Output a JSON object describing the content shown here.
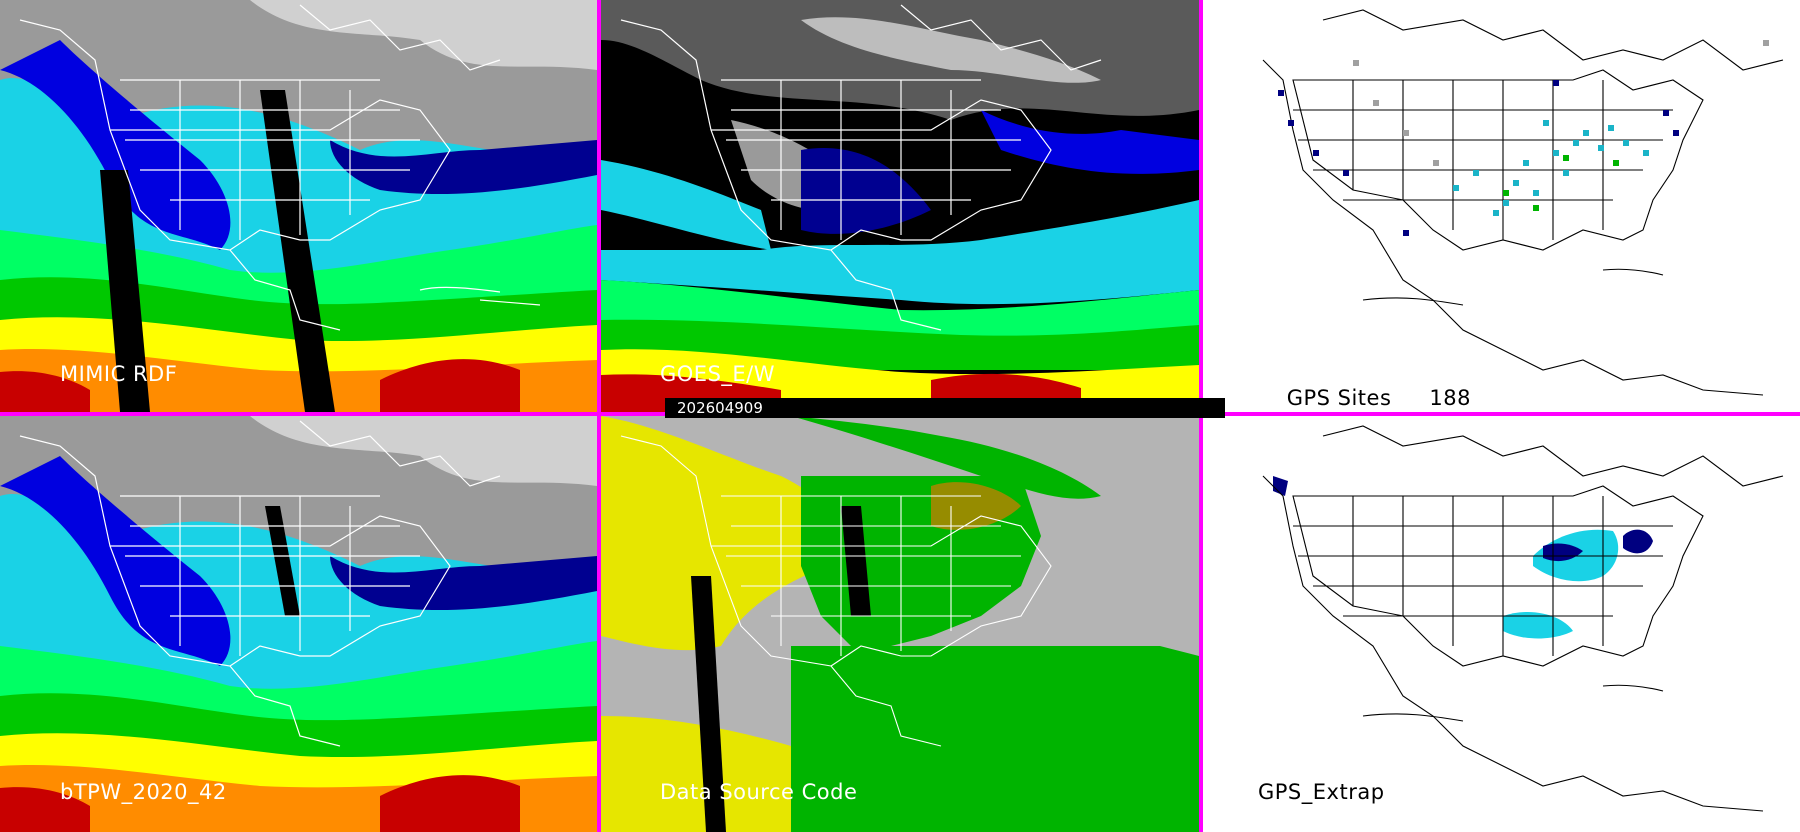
{
  "panels": [
    {
      "label": "MIMIC RDF"
    },
    {
      "label": "GOES_E/W"
    },
    {
      "label": "GPS Sites",
      "count": "188"
    },
    {
      "label": "bTPW_2020_42"
    },
    {
      "label": "Data Source Code"
    },
    {
      "label": "GPS_Extrap"
    }
  ],
  "timestamp": "202604909",
  "colors": {
    "separator": "#ff00ff",
    "tpw_scale": [
      "#7f7f7f",
      "#000080",
      "#0000e0",
      "#1ad2e6",
      "#00ff64",
      "#00c800",
      "#ffff00",
      "#ff8c00",
      "#c80000"
    ],
    "data_source": [
      "#b4b4b4",
      "#e6e600",
      "#00b400",
      "#968c00",
      "#000000"
    ]
  },
  "icons": [
    "state-boundary-map",
    "coastline-map"
  ]
}
